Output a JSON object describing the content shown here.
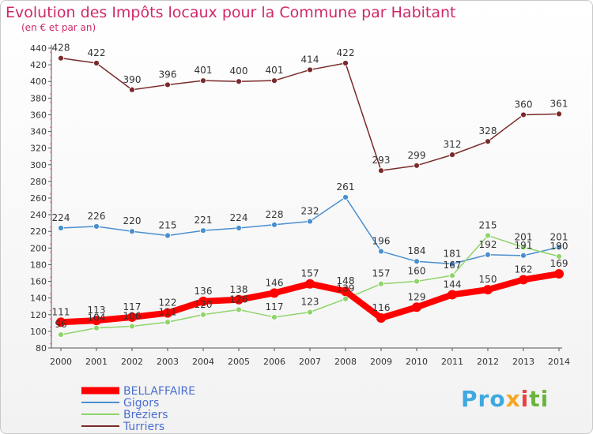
{
  "title": "Evolution des Impôts locaux pour la Commune par Habitant",
  "subtitle": "(en € et par an)",
  "logo": {
    "p": "Pro",
    "x": "x",
    "i": "i",
    "ti": "ti"
  },
  "chart_data": {
    "type": "line",
    "title": "Evolution des Impôts locaux pour la Commune par Habitant",
    "subtitle": "(en € et par an)",
    "x": [
      2000,
      2001,
      2002,
      2003,
      2004,
      2005,
      2006,
      2007,
      2008,
      2009,
      2010,
      2011,
      2012,
      2013,
      2014
    ],
    "ylim": [
      80,
      440
    ],
    "yticks": [
      80,
      100,
      120,
      140,
      160,
      180,
      200,
      220,
      240,
      260,
      280,
      300,
      320,
      340,
      360,
      380,
      400,
      420,
      440
    ],
    "grid": false,
    "legend": "bottom-left",
    "series": [
      {
        "name": "BELLAFFAIRE",
        "color": "#ff0000",
        "values": [
          111,
          113,
          117,
          122,
          136,
          138,
          146,
          157,
          148,
          116,
          129,
          144,
          150,
          162,
          169
        ]
      },
      {
        "name": "Gigors",
        "color": "#4a8fcf",
        "values": [
          224,
          226,
          220,
          215,
          221,
          224,
          228,
          232,
          261,
          196,
          184,
          181,
          192,
          191,
          201
        ]
      },
      {
        "name": "Bréziers",
        "color": "#8fd46a",
        "values": [
          96,
          104,
          106,
          111,
          120,
          126,
          117,
          123,
          139,
          157,
          160,
          167,
          215,
          201,
          190
        ]
      },
      {
        "name": "Turriers",
        "color": "#7a2a2a",
        "values": [
          428,
          422,
          390,
          396,
          401,
          400,
          401,
          414,
          422,
          293,
          299,
          312,
          328,
          360,
          361
        ]
      }
    ]
  }
}
